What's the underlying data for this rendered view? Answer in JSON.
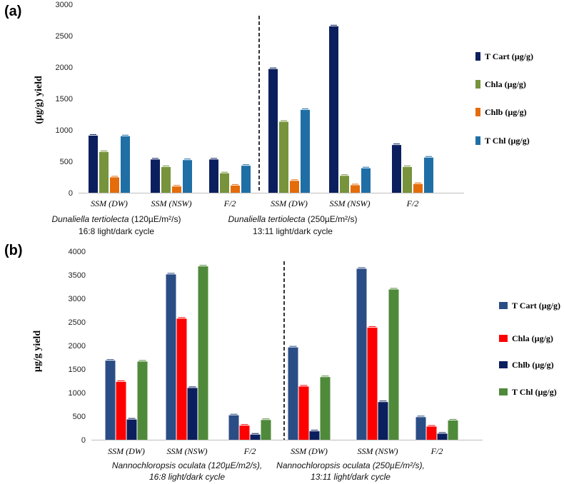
{
  "chart_data": [
    {
      "panel_label": "(a)",
      "type": "bar",
      "ylabel": "(µg/g) yield",
      "ylim": [
        0,
        3000
      ],
      "yticks": [
        "0",
        "500",
        "1000",
        "1500",
        "2000",
        "2500",
        "3000"
      ],
      "categories": [
        "SSM (DW)",
        "SSM (NSW)",
        "F/2",
        "SSM (DW)",
        "SSM (NSW)",
        "F/2"
      ],
      "group_labels": [
        {
          "species": "Dunaliella tertiolecta",
          "conditions": " (120µE/m²/s)",
          "cycle": "16:8 light/dark cycle"
        },
        {
          "species": "Dunaliella tertiolecta",
          "conditions": " (250µE/m²/s)",
          "cycle": "13:11 light/dark cycle"
        }
      ],
      "legend_position": "right",
      "series": [
        {
          "name": "T Cart (µg/g)",
          "color": "#0b1f5e",
          "values": [
            910,
            530,
            530,
            1970,
            2650,
            760
          ]
        },
        {
          "name": "Chla  (µg/g)",
          "color": "#77933c",
          "values": [
            650,
            410,
            310,
            1130,
            270,
            410
          ]
        },
        {
          "name": "Chlb  (µg/g)",
          "color": "#e46c0a",
          "values": [
            245,
            100,
            115,
            190,
            120,
            140
          ]
        },
        {
          "name": "T Chl  (µg/g)",
          "color": "#1f6fa6",
          "values": [
            900,
            520,
            430,
            1320,
            390,
            560
          ]
        }
      ]
    },
    {
      "panel_label": "(b)",
      "type": "bar",
      "ylabel": "µg/g yield",
      "ylim": [
        0,
        4000
      ],
      "yticks": [
        "0",
        "500",
        "1000",
        "1500",
        "2000",
        "2500",
        "3000",
        "3500",
        "4000"
      ],
      "categories": [
        "SSM (DW)",
        "SSM (NSW)",
        "F/2",
        "SSM (DW)",
        "SSM (NSW)",
        "F/2"
      ],
      "group_labels": [
        {
          "species": "Nannochloropsis oculata (120µE/m2/s),",
          "cycle": "16:8 light/dark cycle"
        },
        {
          "species": "Nannochloropsis  oculata (250µE/m²/s),",
          "cycle": "13:11 light/dark cycle"
        }
      ],
      "legend_position": "right",
      "series": [
        {
          "name": "T Cart (µg/g)",
          "color": "#2b4d86",
          "values": [
            1680,
            3510,
            520,
            1960,
            3630,
            480
          ]
        },
        {
          "name": "Chla   (µg/g)",
          "color": "#ff0000",
          "values": [
            1230,
            2570,
            300,
            1130,
            2380,
            280
          ]
        },
        {
          "name": "Chlb (µg/g)",
          "color": "#0b1f5e",
          "values": [
            430,
            1100,
            110,
            180,
            800,
            130
          ]
        },
        {
          "name": "T Chl   (µg/g)",
          "color": "#4f8a3a",
          "values": [
            1660,
            3680,
            420,
            1330,
            3190,
            410
          ]
        }
      ]
    }
  ]
}
